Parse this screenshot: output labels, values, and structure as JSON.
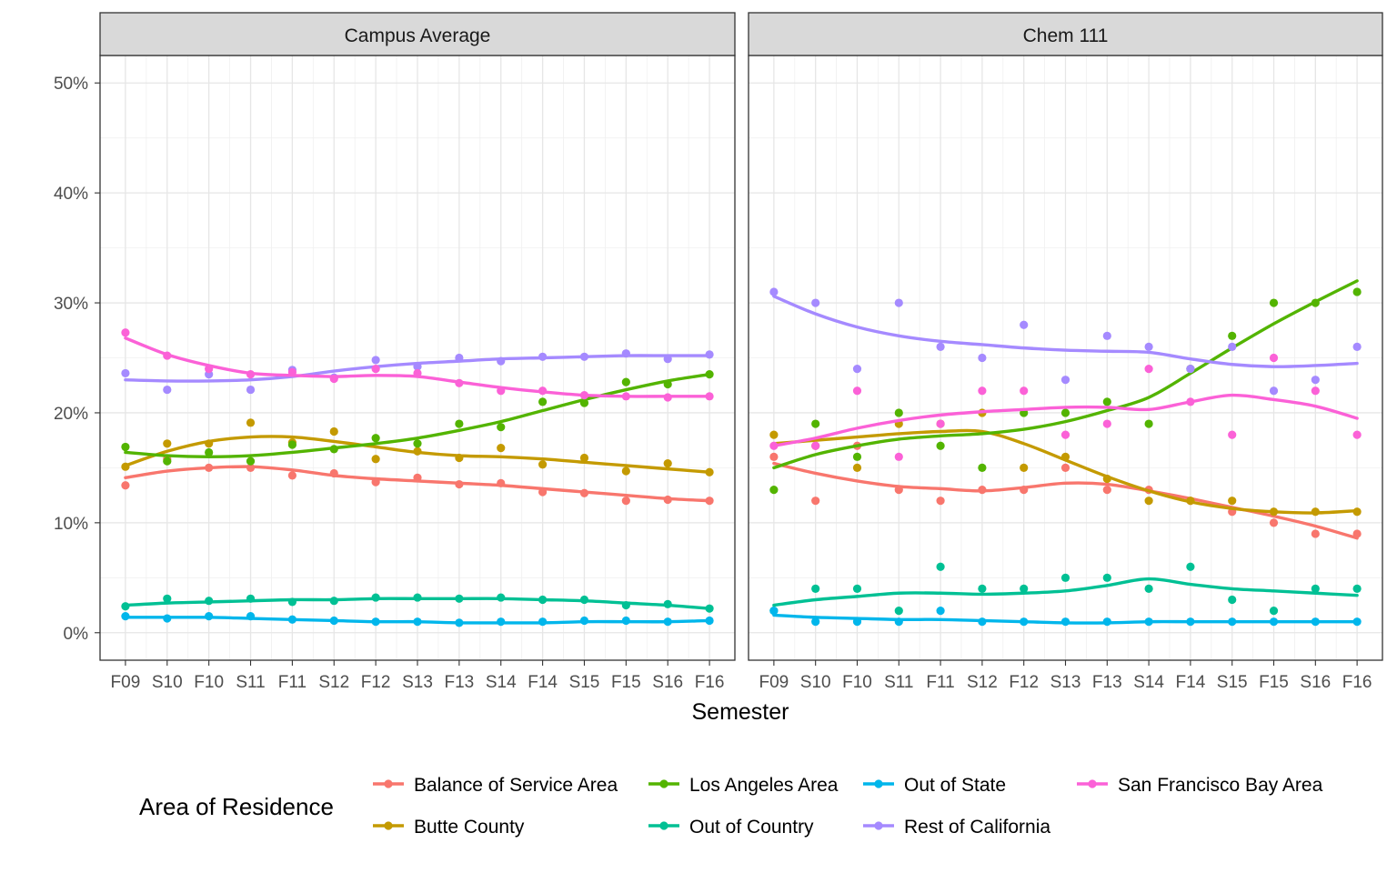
{
  "chart_data": {
    "type": "scatter",
    "xlabel": "Semester",
    "ylabel": "",
    "ylim": [
      -2.5,
      52.5
    ],
    "y_ticks": [
      0,
      10,
      20,
      30,
      40,
      50
    ],
    "y_tick_labels": [
      "0%",
      "10%",
      "20%",
      "30%",
      "40%",
      "50%"
    ],
    "categories": [
      "F09",
      "S10",
      "F10",
      "S11",
      "F11",
      "S12",
      "F12",
      "S13",
      "F13",
      "S14",
      "F14",
      "S15",
      "F15",
      "S16",
      "F16"
    ],
    "legend": {
      "title": "Area of Residence",
      "placement": "bottom",
      "entries": [
        {
          "name": "Balance of Service Area",
          "color": "#F8766D"
        },
        {
          "name": "Butte County",
          "color": "#C49A00"
        },
        {
          "name": "Los Angeles Area",
          "color": "#53B400"
        },
        {
          "name": "Out of Country",
          "color": "#00C094"
        },
        {
          "name": "Out of State",
          "color": "#00B6EB"
        },
        {
          "name": "Rest of California",
          "color": "#A58AFF"
        },
        {
          "name": "San Francisco Bay Area",
          "color": "#FB61D7"
        }
      ]
    },
    "panels": [
      {
        "title": "Campus Average",
        "series": [
          {
            "name": "Balance of Service Area",
            "color": "#F8766D",
            "points": [
              13.4,
              15.8,
              15.0,
              15.0,
              14.3,
              14.5,
              13.7,
              14.1,
              13.5,
              13.6,
              12.8,
              12.7,
              12.0,
              12.1,
              12.0
            ],
            "smooth": [
              14.1,
              14.7,
              15.0,
              15.1,
              14.8,
              14.3,
              14.0,
              13.8,
              13.6,
              13.4,
              13.1,
              12.8,
              12.5,
              12.2,
              12.0
            ]
          },
          {
            "name": "Butte County",
            "color": "#C49A00",
            "points": [
              15.1,
              17.2,
              17.2,
              19.1,
              17.3,
              18.3,
              15.8,
              16.5,
              15.9,
              16.8,
              15.3,
              15.9,
              14.7,
              15.4,
              14.6
            ],
            "smooth": [
              15.2,
              16.5,
              17.4,
              17.8,
              17.8,
              17.4,
              16.9,
              16.4,
              16.1,
              16.0,
              15.8,
              15.5,
              15.2,
              14.9,
              14.6
            ]
          },
          {
            "name": "Los Angeles Area",
            "color": "#53B400",
            "points": [
              16.9,
              15.6,
              16.4,
              15.6,
              17.1,
              16.7,
              17.7,
              17.2,
              19.0,
              18.7,
              21.0,
              20.9,
              22.8,
              22.6,
              23.5
            ],
            "smooth": [
              16.4,
              16.1,
              16.0,
              16.1,
              16.4,
              16.8,
              17.2,
              17.7,
              18.4,
              19.2,
              20.2,
              21.2,
              22.1,
              22.9,
              23.5
            ]
          },
          {
            "name": "Out of Country",
            "color": "#00C094",
            "points": [
              2.4,
              3.1,
              2.9,
              3.1,
              2.8,
              2.9,
              3.2,
              3.2,
              3.1,
              3.2,
              3.0,
              3.0,
              2.5,
              2.6,
              2.2
            ],
            "smooth": [
              2.5,
              2.7,
              2.8,
              2.9,
              3.0,
              3.0,
              3.1,
              3.1,
              3.1,
              3.1,
              3.0,
              2.9,
              2.7,
              2.5,
              2.2
            ]
          },
          {
            "name": "Out of State",
            "color": "#00B6EB",
            "points": [
              1.5,
              1.3,
              1.5,
              1.5,
              1.2,
              1.1,
              1.0,
              1.0,
              0.9,
              1.0,
              1.0,
              1.1,
              1.1,
              1.0,
              1.1
            ],
            "smooth": [
              1.4,
              1.4,
              1.4,
              1.3,
              1.2,
              1.1,
              1.0,
              1.0,
              0.9,
              0.9,
              0.9,
              1.0,
              1.0,
              1.0,
              1.1
            ]
          },
          {
            "name": "Rest of California",
            "color": "#A58AFF",
            "points": [
              23.6,
              22.1,
              23.5,
              22.1,
              23.9,
              23.2,
              24.8,
              24.2,
              25.0,
              24.7,
              25.1,
              25.1,
              25.4,
              24.9,
              25.3
            ],
            "smooth": [
              23.0,
              22.9,
              22.9,
              23.0,
              23.3,
              23.8,
              24.2,
              24.5,
              24.7,
              24.9,
              25.0,
              25.1,
              25.2,
              25.2,
              25.2
            ]
          },
          {
            "name": "San Francisco Bay Area",
            "color": "#FB61D7",
            "points": [
              27.3,
              25.2,
              24.0,
              23.5,
              23.7,
              23.1,
              24.0,
              23.6,
              22.7,
              22.0,
              22.0,
              21.6,
              21.5,
              21.4,
              21.5
            ],
            "smooth": [
              26.8,
              25.3,
              24.3,
              23.6,
              23.4,
              23.3,
              23.4,
              23.3,
              22.8,
              22.3,
              21.9,
              21.6,
              21.5,
              21.5,
              21.5
            ]
          }
        ]
      },
      {
        "title": "Chem 111",
        "series": [
          {
            "name": "Balance of Service Area",
            "color": "#F8766D",
            "points": [
              16.0,
              12.0,
              17.0,
              13.0,
              12.0,
              13.0,
              13.0,
              15.0,
              13.0,
              13.0,
              12.0,
              11.0,
              10.0,
              9.0,
              9.0
            ],
            "smooth": [
              15.4,
              14.5,
              13.8,
              13.3,
              13.1,
              12.9,
              13.2,
              13.6,
              13.5,
              12.9,
              12.2,
              11.4,
              10.6,
              9.7,
              8.6
            ]
          },
          {
            "name": "Butte County",
            "color": "#C49A00",
            "points": [
              18.0,
              17.0,
              15.0,
              19.0,
              19.0,
              20.0,
              15.0,
              16.0,
              14.0,
              12.0,
              12.0,
              12.0,
              11.0,
              11.0,
              11.0
            ],
            "smooth": [
              17.2,
              17.5,
              17.8,
              18.1,
              18.3,
              18.3,
              17.2,
              15.7,
              14.2,
              12.9,
              11.9,
              11.3,
              11.0,
              10.9,
              11.1
            ]
          },
          {
            "name": "Los Angeles Area",
            "color": "#53B400",
            "points": [
              13.0,
              19.0,
              16.0,
              20.0,
              17.0,
              15.0,
              20.0,
              20.0,
              21.0,
              19.0,
              24.0,
              27.0,
              30.0,
              30.0,
              31.0
            ],
            "smooth": [
              15.0,
              16.2,
              17.0,
              17.6,
              17.9,
              18.1,
              18.5,
              19.2,
              20.2,
              21.4,
              23.6,
              25.9,
              28.1,
              30.1,
              32.0
            ]
          },
          {
            "name": "Out of Country",
            "color": "#00C094",
            "points": [
              2.0,
              4.0,
              4.0,
              2.0,
              6.0,
              4.0,
              4.0,
              5.0,
              5.0,
              4.0,
              6.0,
              3.0,
              2.0,
              4.0,
              4.0
            ],
            "smooth": [
              2.5,
              3.0,
              3.3,
              3.6,
              3.6,
              3.5,
              3.6,
              3.8,
              4.3,
              4.9,
              4.4,
              4.0,
              3.8,
              3.6,
              3.4
            ]
          },
          {
            "name": "Out of State",
            "color": "#00B6EB",
            "points": [
              2.0,
              1.0,
              1.0,
              1.0,
              2.0,
              1.0,
              1.0,
              1.0,
              1.0,
              1.0,
              1.0,
              1.0,
              1.0,
              1.0,
              1.0
            ],
            "smooth": [
              1.6,
              1.4,
              1.3,
              1.2,
              1.2,
              1.1,
              1.0,
              0.9,
              0.9,
              1.0,
              1.0,
              1.0,
              1.0,
              1.0,
              1.0
            ]
          },
          {
            "name": "Rest of California",
            "color": "#A58AFF",
            "points": [
              31.0,
              30.0,
              24.0,
              30.0,
              26.0,
              25.0,
              28.0,
              23.0,
              27.0,
              26.0,
              24.0,
              26.0,
              22.0,
              23.0,
              26.0
            ],
            "smooth": [
              30.6,
              29.0,
              27.8,
              27.0,
              26.5,
              26.2,
              25.9,
              25.7,
              25.6,
              25.5,
              24.9,
              24.4,
              24.2,
              24.3,
              24.5
            ]
          },
          {
            "name": "San Francisco Bay Area",
            "color": "#FB61D7",
            "points": [
              17.0,
              17.0,
              22.0,
              16.0,
              19.0,
              22.0,
              22.0,
              18.0,
              19.0,
              24.0,
              21.0,
              18.0,
              25.0,
              22.0,
              18.0
            ],
            "smooth": [
              17.0,
              17.7,
              18.6,
              19.3,
              19.8,
              20.1,
              20.3,
              20.5,
              20.5,
              20.3,
              21.0,
              21.6,
              21.2,
              20.6,
              19.5
            ]
          }
        ]
      }
    ]
  }
}
